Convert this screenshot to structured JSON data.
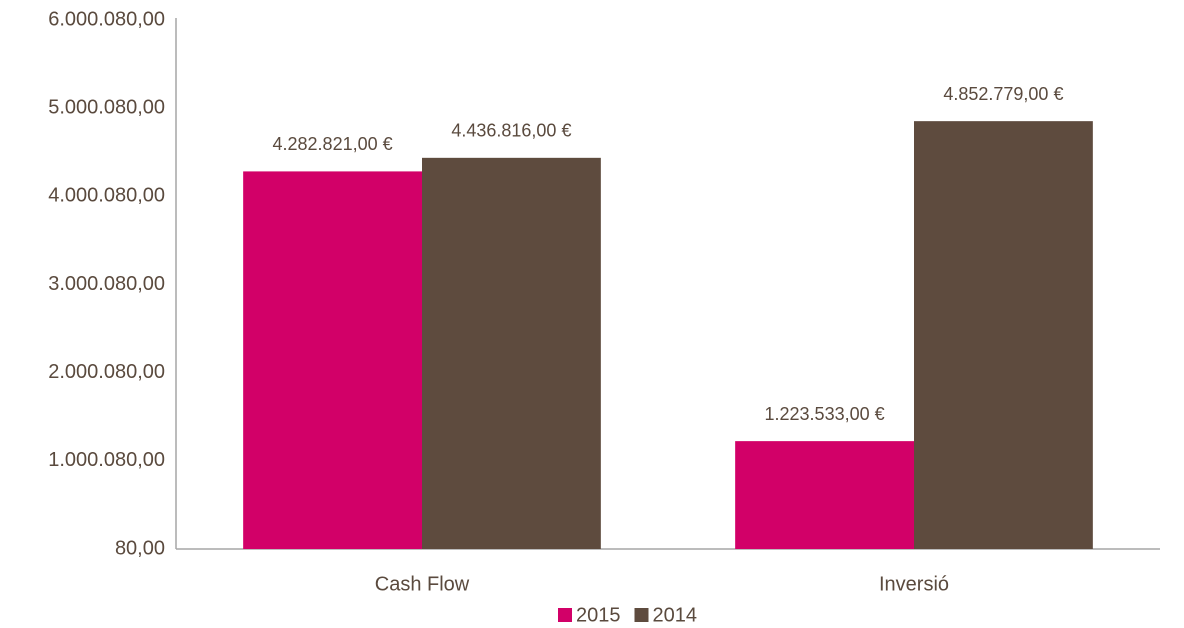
{
  "chart_data": {
    "type": "bar",
    "categories": [
      "Cash Flow",
      "Inversió"
    ],
    "series": [
      {
        "name": "2015",
        "color": "#d20068",
        "values": [
          4282821,
          1223533
        ],
        "value_labels": [
          "4.282.821,00 €",
          "1.223.533,00 €"
        ]
      },
      {
        "name": "2014",
        "color": "#5e4b3e",
        "values": [
          4436816,
          4852779
        ],
        "value_labels": [
          "4.436.816,00 €",
          "4.852.779,00 €"
        ]
      }
    ],
    "ylim": [
      80,
      6000080
    ],
    "yticks": [
      {
        "value": 80,
        "label": "80,00"
      },
      {
        "value": 1000080,
        "label": "1.000.080,00"
      },
      {
        "value": 2000080,
        "label": "2.000.080,00"
      },
      {
        "value": 3000080,
        "label": "3.000.080,00"
      },
      {
        "value": 4000080,
        "label": "4.000.080,00"
      },
      {
        "value": 5000080,
        "label": "5.000.080,00"
      },
      {
        "value": 6000080,
        "label": "6.000.080,00"
      }
    ],
    "grid": false,
    "legend": "bottom"
  }
}
